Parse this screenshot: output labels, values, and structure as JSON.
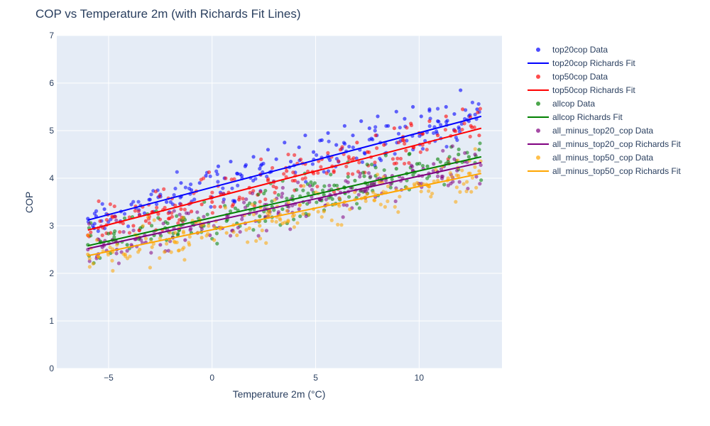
{
  "chart_data": {
    "type": "scatter",
    "title": "COP vs Temperature 2m (with Richards Fit Lines)",
    "xlabel": "Temperature 2m (°C)",
    "ylabel": "COP",
    "xlim": [
      -7.5,
      14
    ],
    "ylim": [
      0,
      7
    ],
    "xticks": [
      -5,
      0,
      5,
      10
    ],
    "yticks": [
      0,
      1,
      2,
      3,
      4,
      5,
      6,
      7
    ],
    "grid": true,
    "legend_position": "right",
    "data_x_range": [
      -6,
      13
    ],
    "series": [
      {
        "name": "top20cop Data",
        "kind": "scatter",
        "color": "#0000ff",
        "points": [
          [
            -6.0,
            3.15
          ],
          [
            -5.6,
            3.2
          ],
          [
            -5.2,
            3.35
          ],
          [
            -4.7,
            3.2
          ],
          [
            -4.4,
            3.3
          ],
          [
            -3.9,
            3.45
          ],
          [
            -3.0,
            3.55
          ],
          [
            -2.6,
            3.6
          ],
          [
            -2.2,
            3.5
          ],
          [
            -1.5,
            3.9
          ],
          [
            -1.0,
            3.75
          ],
          [
            -0.6,
            3.9
          ],
          [
            -0.3,
            4.05
          ],
          [
            0.0,
            3.6
          ],
          [
            0.3,
            4.25
          ],
          [
            0.6,
            4.0
          ],
          [
            0.9,
            4.35
          ],
          [
            1.2,
            4.1
          ],
          [
            1.6,
            4.25
          ],
          [
            2.0,
            4.45
          ],
          [
            2.3,
            4.2
          ],
          [
            2.7,
            4.6
          ],
          [
            3.1,
            4.4
          ],
          [
            3.5,
            4.75
          ],
          [
            3.8,
            4.35
          ],
          [
            4.2,
            4.65
          ],
          [
            4.5,
            4.9
          ],
          [
            4.9,
            4.55
          ],
          [
            5.3,
            4.8
          ],
          [
            5.6,
            4.95
          ],
          [
            6.0,
            4.7
          ],
          [
            6.4,
            5.1
          ],
          [
            6.8,
            4.9
          ],
          [
            7.2,
            5.2
          ],
          [
            7.6,
            5.05
          ],
          [
            8.0,
            5.3
          ],
          [
            8.5,
            5.1
          ],
          [
            8.9,
            5.4
          ],
          [
            9.3,
            5.25
          ],
          [
            9.7,
            5.5
          ],
          [
            10.1,
            5.3
          ],
          [
            10.5,
            5.45
          ],
          [
            10.9,
            5.2
          ],
          [
            11.3,
            5.5
          ],
          [
            11.7,
            5.35
          ],
          [
            12.0,
            5.85
          ],
          [
            12.4,
            5.2
          ],
          [
            12.8,
            5.45
          ]
        ]
      },
      {
        "name": "top20cop Richards Fit",
        "kind": "line",
        "color": "#0000ff",
        "x": [
          -6,
          13
        ],
        "y": [
          3.12,
          5.3
        ]
      },
      {
        "name": "top50cop Data",
        "kind": "scatter",
        "color": "#ff0000",
        "points": [
          [
            -6.0,
            2.8
          ],
          [
            -5.5,
            2.95
          ],
          [
            -4.9,
            2.85
          ],
          [
            -4.3,
            3.05
          ],
          [
            -3.8,
            3.0
          ],
          [
            -3.2,
            3.1
          ],
          [
            -2.6,
            3.25
          ],
          [
            -2.1,
            3.15
          ],
          [
            -1.5,
            3.35
          ],
          [
            -1.0,
            3.3
          ],
          [
            -0.5,
            3.45
          ],
          [
            0.0,
            3.5
          ],
          [
            0.4,
            3.4
          ],
          [
            0.8,
            3.7
          ],
          [
            1.3,
            3.55
          ],
          [
            1.8,
            3.8
          ],
          [
            2.2,
            3.65
          ],
          [
            2.7,
            3.95
          ],
          [
            3.1,
            3.8
          ],
          [
            3.6,
            4.15
          ],
          [
            4.0,
            3.95
          ],
          [
            4.5,
            4.3
          ],
          [
            4.9,
            4.1
          ],
          [
            5.3,
            4.4
          ],
          [
            5.8,
            4.25
          ],
          [
            6.2,
            4.6
          ],
          [
            6.6,
            4.45
          ],
          [
            7.0,
            4.75
          ],
          [
            7.5,
            4.55
          ],
          [
            7.9,
            4.9
          ],
          [
            8.3,
            4.7
          ],
          [
            8.8,
            5.05
          ],
          [
            9.2,
            4.85
          ],
          [
            9.6,
            5.15
          ],
          [
            10.0,
            4.95
          ],
          [
            10.5,
            5.2
          ],
          [
            10.9,
            4.9
          ],
          [
            11.3,
            5.3
          ],
          [
            11.7,
            5.0
          ],
          [
            12.1,
            5.45
          ],
          [
            12.5,
            5.1
          ],
          [
            12.9,
            4.9
          ]
        ]
      },
      {
        "name": "top50cop Richards Fit",
        "kind": "line",
        "color": "#ff0000",
        "x": [
          -6,
          13
        ],
        "y": [
          2.91,
          5.05
        ]
      },
      {
        "name": "allcop Data",
        "kind": "scatter",
        "color": "#008000",
        "points": [
          [
            -6.0,
            2.6
          ],
          [
            -5.4,
            2.65
          ],
          [
            -4.8,
            2.7
          ],
          [
            -4.1,
            2.6
          ],
          [
            -3.5,
            2.75
          ],
          [
            -2.8,
            2.8
          ],
          [
            -2.2,
            2.7
          ],
          [
            -1.6,
            2.9
          ],
          [
            -1.0,
            2.85
          ],
          [
            -0.4,
            3.0
          ],
          [
            0.2,
            2.95
          ],
          [
            0.7,
            3.1
          ],
          [
            1.2,
            3.05
          ],
          [
            1.8,
            3.25
          ],
          [
            2.3,
            3.2
          ],
          [
            2.9,
            3.4
          ],
          [
            3.4,
            3.35
          ],
          [
            3.9,
            3.55
          ],
          [
            4.4,
            3.5
          ],
          [
            4.9,
            3.7
          ],
          [
            5.4,
            3.65
          ],
          [
            5.9,
            3.85
          ],
          [
            6.4,
            3.8
          ],
          [
            6.9,
            3.95
          ],
          [
            7.4,
            3.9
          ],
          [
            7.9,
            4.05
          ],
          [
            8.4,
            4.0
          ],
          [
            8.9,
            4.2
          ],
          [
            9.4,
            4.1
          ],
          [
            9.9,
            4.3
          ],
          [
            10.4,
            4.25
          ],
          [
            10.9,
            4.4
          ],
          [
            11.4,
            4.35
          ],
          [
            11.9,
            4.5
          ],
          [
            12.4,
            4.45
          ],
          [
            12.9,
            4.6
          ]
        ]
      },
      {
        "name": "allcop Richards Fit",
        "kind": "line",
        "color": "#008000",
        "x": [
          -6,
          13
        ],
        "y": [
          2.58,
          4.45
        ]
      },
      {
        "name": "all_minus_top20_cop Data",
        "kind": "scatter",
        "color": "#800080",
        "points": [
          [
            -6.0,
            2.5
          ],
          [
            -5.3,
            2.55
          ],
          [
            -4.6,
            2.5
          ],
          [
            -3.9,
            2.6
          ],
          [
            -3.2,
            2.65
          ],
          [
            -2.5,
            2.6
          ],
          [
            -1.9,
            2.75
          ],
          [
            -1.3,
            2.7
          ],
          [
            -0.7,
            2.85
          ],
          [
            -0.1,
            2.8
          ],
          [
            0.5,
            2.95
          ],
          [
            1.0,
            2.9
          ],
          [
            1.6,
            3.05
          ],
          [
            2.1,
            3.1
          ],
          [
            2.7,
            3.2
          ],
          [
            3.2,
            3.25
          ],
          [
            3.7,
            3.4
          ],
          [
            4.2,
            3.35
          ],
          [
            4.7,
            3.5
          ],
          [
            5.2,
            3.55
          ],
          [
            5.7,
            3.65
          ],
          [
            6.2,
            3.7
          ],
          [
            6.7,
            3.8
          ],
          [
            7.2,
            3.75
          ],
          [
            7.7,
            3.9
          ],
          [
            8.2,
            3.95
          ],
          [
            8.7,
            4.05
          ],
          [
            9.2,
            4.0
          ],
          [
            9.7,
            4.15
          ],
          [
            10.2,
            4.2
          ],
          [
            10.7,
            4.3
          ],
          [
            11.2,
            4.25
          ],
          [
            11.7,
            4.4
          ],
          [
            12.2,
            4.35
          ],
          [
            12.7,
            4.5
          ]
        ]
      },
      {
        "name": "all_minus_top20_cop Richards Fit",
        "kind": "line",
        "color": "#800080",
        "x": [
          -6,
          13
        ],
        "y": [
          2.52,
          4.33
        ]
      },
      {
        "name": "all_minus_top50_cop Data",
        "kind": "scatter",
        "color": "#ffa500",
        "points": [
          [
            -6.0,
            2.4
          ],
          [
            -5.5,
            2.35
          ],
          [
            -4.8,
            2.45
          ],
          [
            -4.2,
            2.4
          ],
          [
            -3.5,
            2.5
          ],
          [
            -2.9,
            2.55
          ],
          [
            -2.3,
            2.45
          ],
          [
            -1.7,
            2.65
          ],
          [
            -1.1,
            2.6
          ],
          [
            -0.5,
            2.75
          ],
          [
            0.1,
            2.7
          ],
          [
            0.7,
            2.85
          ],
          [
            1.2,
            2.8
          ],
          [
            1.8,
            2.95
          ],
          [
            2.3,
            3.0
          ],
          [
            2.9,
            3.1
          ],
          [
            3.4,
            3.05
          ],
          [
            3.9,
            3.2
          ],
          [
            4.4,
            3.25
          ],
          [
            4.9,
            3.35
          ],
          [
            5.4,
            3.3
          ],
          [
            5.9,
            3.45
          ],
          [
            6.4,
            3.5
          ],
          [
            6.9,
            3.55
          ],
          [
            7.4,
            3.6
          ],
          [
            7.9,
            3.65
          ],
          [
            8.4,
            3.7
          ],
          [
            8.9,
            3.75
          ],
          [
            9.4,
            3.8
          ],
          [
            9.9,
            3.9
          ],
          [
            10.4,
            3.85
          ],
          [
            10.9,
            3.95
          ],
          [
            11.4,
            4.0
          ],
          [
            11.9,
            4.05
          ],
          [
            12.4,
            4.1
          ],
          [
            12.9,
            4.15
          ]
        ]
      },
      {
        "name": "all_minus_top50_cop Richards Fit",
        "kind": "line",
        "color": "#ffa500",
        "x": [
          -6,
          13
        ],
        "y": [
          2.37,
          4.1
        ]
      }
    ]
  }
}
